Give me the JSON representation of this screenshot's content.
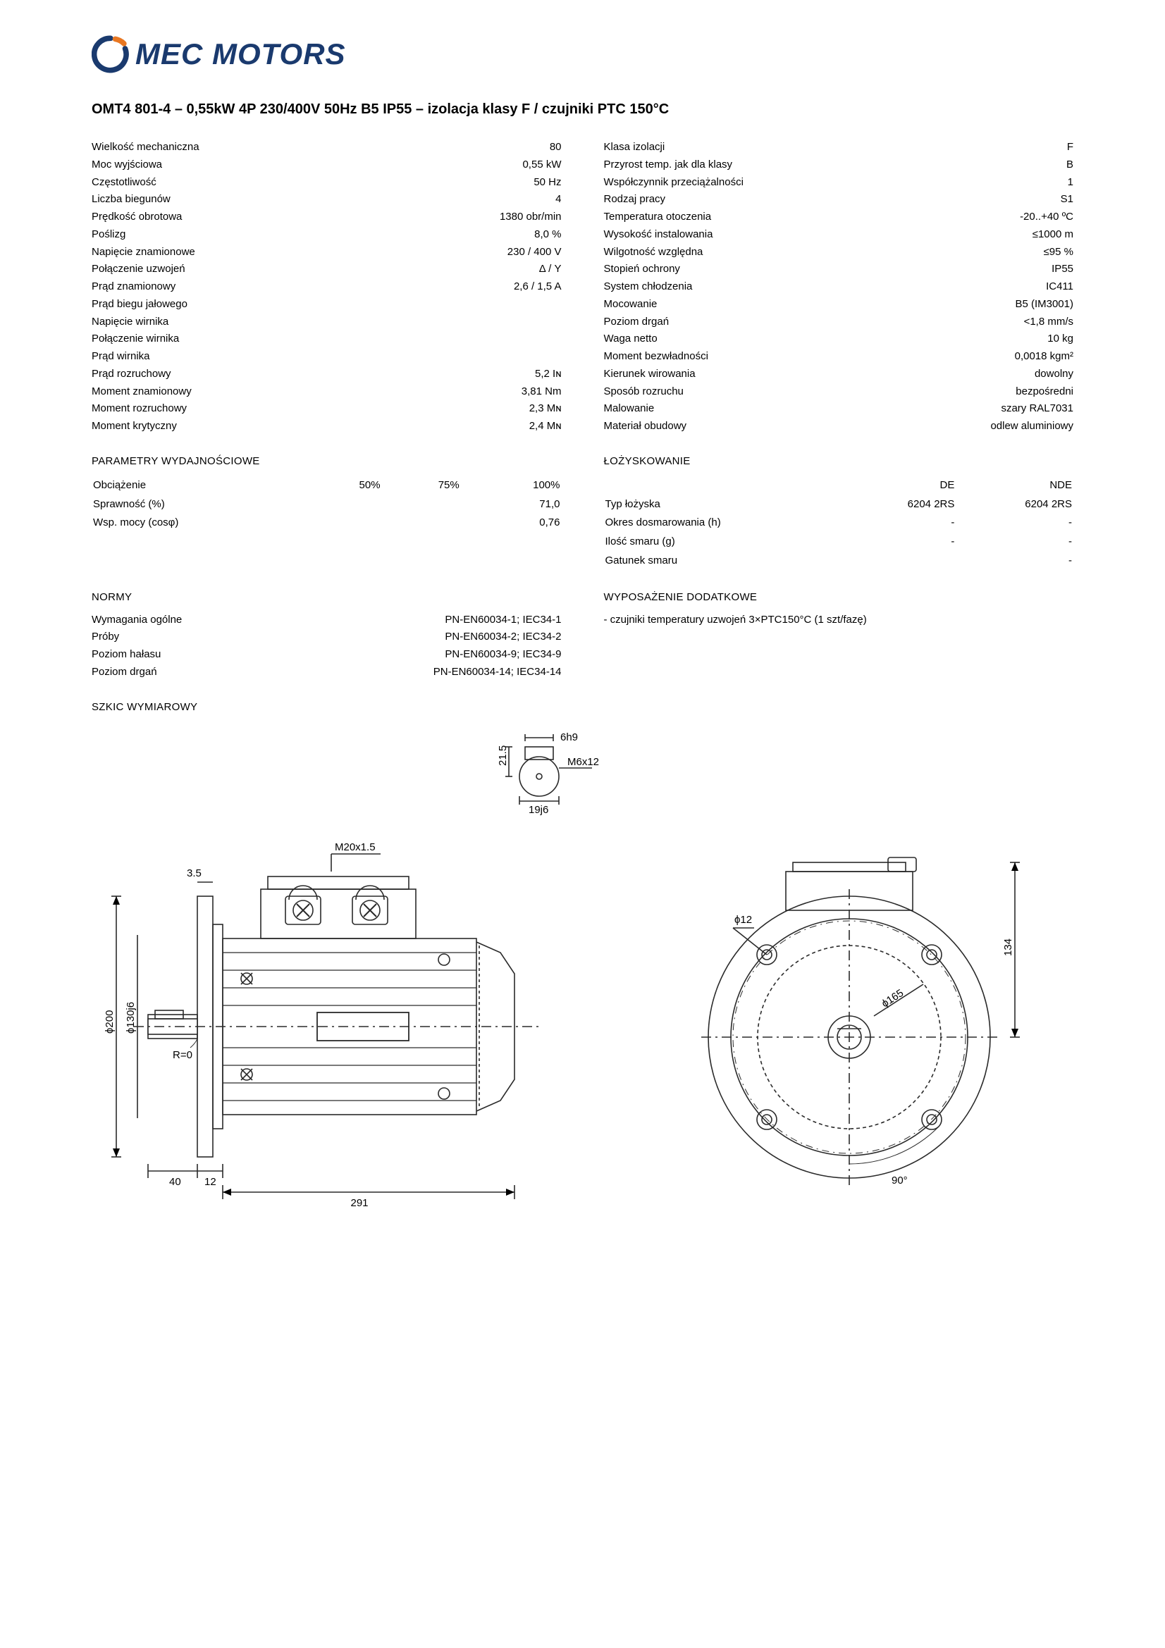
{
  "logo": {
    "brand": "MEC MOTORS"
  },
  "title": "OMT4 801-4 – 0,55kW 4P 230/400V 50Hz B5 IP55 – izolacja klasy F / czujniki PTC 150°C",
  "colors": {
    "logo_blue": "#1a3a6e",
    "logo_orange": "#e87722",
    "text": "#000000",
    "drawing_stroke": "#2a2a2a",
    "background": "#ffffff"
  },
  "specs_left": [
    {
      "label": "Wielkość mechaniczna",
      "value": "80"
    },
    {
      "label": "Moc wyjściowa",
      "value": "0,55 kW"
    },
    {
      "label": "Częstotliwość",
      "value": "50 Hz"
    },
    {
      "label": "Liczba biegunów",
      "value": "4"
    },
    {
      "label": "Prędkość obrotowa",
      "value": "1380 obr/min"
    },
    {
      "label": "Poślizg",
      "value": "8,0 %"
    },
    {
      "label": "Napięcie znamionowe",
      "value": "230 / 400 V"
    },
    {
      "label": "Połączenie uzwojeń",
      "value": "Δ / Y"
    },
    {
      "label": "Prąd znamionowy",
      "value": "2,6 / 1,5 A"
    },
    {
      "label": "Prąd biegu jałowego",
      "value": ""
    },
    {
      "label": "Napięcie wirnika",
      "value": ""
    },
    {
      "label": "Połączenie wirnika",
      "value": ""
    },
    {
      "label": "Prąd wirnika",
      "value": ""
    },
    {
      "label": "Prąd rozruchowy",
      "value": "5,2 Iɴ"
    },
    {
      "label": "Moment znamionowy",
      "value": "3,81 Nm"
    },
    {
      "label": "Moment rozruchowy",
      "value": "2,3 Mɴ"
    },
    {
      "label": "Moment krytyczny",
      "value": "2,4 Mɴ"
    }
  ],
  "specs_right": [
    {
      "label": "Klasa izolacji",
      "value": "F"
    },
    {
      "label": "Przyrost temp. jak dla klasy",
      "value": "B"
    },
    {
      "label": "Współczynnik przeciążalności",
      "value": "1"
    },
    {
      "label": "Rodzaj pracy",
      "value": "S1"
    },
    {
      "label": "Temperatura otoczenia",
      "value": "-20..+40 ºC"
    },
    {
      "label": "Wysokość instalowania",
      "value": "≤1000 m"
    },
    {
      "label": "Wilgotność względna",
      "value": "≤95 %"
    },
    {
      "label": "Stopień ochrony",
      "value": "IP55"
    },
    {
      "label": "System chłodzenia",
      "value": "IC411"
    },
    {
      "label": "Mocowanie",
      "value": "B5 (IM3001)"
    },
    {
      "label": "Poziom drgań",
      "value": "<1,8 mm/s"
    },
    {
      "label": "Waga netto",
      "value": "10 kg"
    },
    {
      "label": "Moment bezwładności",
      "value": "0,0018 kgm²"
    },
    {
      "label": "Kierunek wirowania",
      "value": "dowolny"
    },
    {
      "label": "Sposób rozruchu",
      "value": "bezpośredni"
    },
    {
      "label": "Malowanie",
      "value": "szary RAL7031"
    },
    {
      "label": "Materiał obudowy",
      "value": "odlew aluminiowy"
    }
  ],
  "sections": {
    "performance": "PARAMETRY WYDAJNOŚCIOWE",
    "bearings": "ŁOŻYSKOWANIE",
    "norms": "NORMY",
    "accessories": "WYPOSAŻENIE DODATKOWE",
    "drawing": "SZKIC WYMIAROWY"
  },
  "performance": {
    "load_label": "Obciążenie",
    "cols": [
      "50%",
      "75%",
      "100%"
    ],
    "rows": [
      {
        "label": "Sprawność (%)",
        "vals": [
          "",
          "",
          "71,0"
        ]
      },
      {
        "label": "Wsp. mocy (cosφ)",
        "vals": [
          "",
          "",
          "0,76"
        ]
      }
    ]
  },
  "bearings": {
    "head": [
      "DE",
      "NDE"
    ],
    "rows": [
      {
        "label": "Typ łożyska",
        "vals": [
          "6204 2RS",
          "6204 2RS"
        ]
      },
      {
        "label": "Okres dosmarowania (h)",
        "vals": [
          "-",
          "-"
        ]
      },
      {
        "label": "Ilość smaru (g)",
        "vals": [
          "-",
          "-"
        ]
      },
      {
        "label": "Gatunek smaru",
        "vals": [
          "",
          "-"
        ]
      }
    ]
  },
  "norms": [
    {
      "label": "Wymagania ogólne",
      "value": "PN-EN60034-1; IEC34-1"
    },
    {
      "label": "Próby",
      "value": "PN-EN60034-2; IEC34-2"
    },
    {
      "label": "Poziom hałasu",
      "value": "PN-EN60034-9; IEC34-9"
    },
    {
      "label": "Poziom drgań",
      "value": "PN-EN60034-14; IEC34-14"
    }
  ],
  "accessories": [
    "- czujniki temperatury uzwojeń 3×PTC150°C (1 szt/fazę)"
  ],
  "drawing": {
    "dims": {
      "top_thread": "M20x1.5",
      "flange_gap": "3.5",
      "phi200": "ϕ200",
      "phi130": "ϕ130j6",
      "R": "R=0",
      "d40": "40",
      "d12": "12",
      "d291": "291",
      "key_w": "6h9",
      "key_thread": "M6x12",
      "key_h": "21.5",
      "key_d": "19j6",
      "phi12": "ϕ12",
      "phi165": "ϕ165",
      "angle90": "90°",
      "h134": "134"
    }
  }
}
